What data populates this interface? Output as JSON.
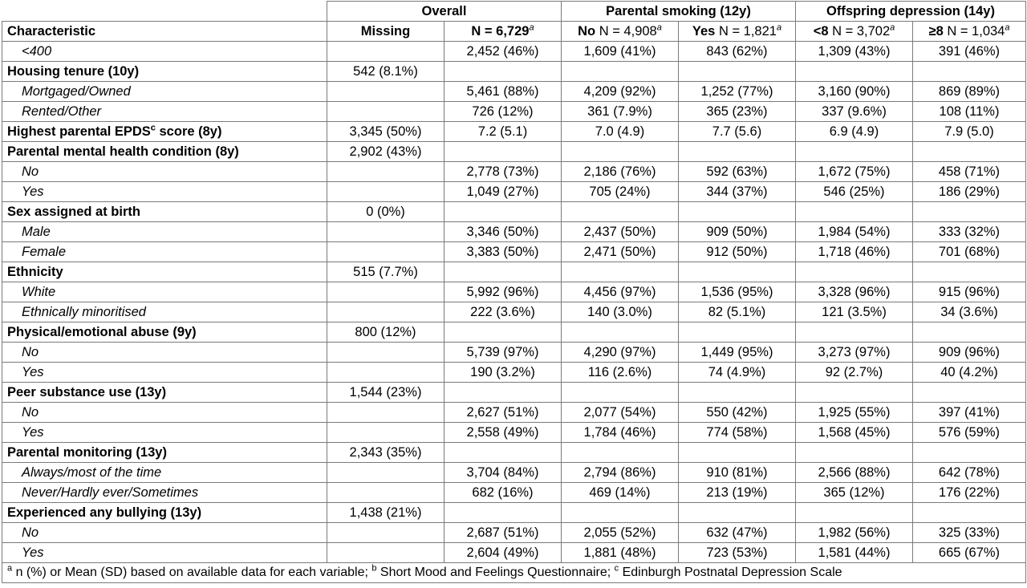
{
  "header": {
    "groups": [
      {
        "label": "Overall",
        "span": 2
      },
      {
        "label": "Parental smoking (12y)",
        "span": 2
      },
      {
        "label": "Offspring depression (14y)",
        "span": 2
      }
    ],
    "cols": [
      {
        "bold": "Characteristic",
        "rest": "",
        "sup": ""
      },
      {
        "bold": "Missing",
        "rest": "",
        "sup": ""
      },
      {
        "bold": "N = 6,729",
        "rest": "",
        "sup": "a"
      },
      {
        "bold": "No",
        "rest": " N = 4,908",
        "sup": "a"
      },
      {
        "bold": "Yes",
        "rest": " N = 1,821",
        "sup": "a"
      },
      {
        "bold": "<8",
        "rest": " N = 3,702",
        "sup": "a"
      },
      {
        "bold": "≥8",
        "rest": " N = 1,034",
        "sup": "a"
      }
    ]
  },
  "rows": [
    {
      "type": "sub",
      "label": "<400",
      "missing": "",
      "overall": "2,452 (46%)",
      "smoke_no": "1,609 (41%)",
      "smoke_yes": "843 (62%)",
      "dep_lt8": "1,309 (43%)",
      "dep_ge8": "391 (46%)"
    },
    {
      "type": "var",
      "label": "Housing tenure (10y)",
      "missing": "542 (8.1%)",
      "overall": "",
      "smoke_no": "",
      "smoke_yes": "",
      "dep_lt8": "",
      "dep_ge8": ""
    },
    {
      "type": "sub",
      "label": "Mortgaged/Owned",
      "missing": "",
      "overall": "5,461 (88%)",
      "smoke_no": "4,209 (92%)",
      "smoke_yes": "1,252 (77%)",
      "dep_lt8": "3,160 (90%)",
      "dep_ge8": "869 (89%)"
    },
    {
      "type": "sub",
      "label": "Rented/Other",
      "missing": "",
      "overall": "726 (12%)",
      "smoke_no": "361 (7.9%)",
      "smoke_yes": "365 (23%)",
      "dep_lt8": "337 (9.6%)",
      "dep_ge8": "108 (11%)"
    },
    {
      "type": "var",
      "label": "Highest parental EPDS",
      "label_sup": "c",
      "label_suffix": " score (8y)",
      "missing": "3,345 (50%)",
      "overall": "7.2 (5.1)",
      "smoke_no": "7.0 (4.9)",
      "smoke_yes": "7.7 (5.6)",
      "dep_lt8": "6.9 (4.9)",
      "dep_ge8": "7.9 (5.0)"
    },
    {
      "type": "var",
      "label": "Parental mental health condition (8y)",
      "missing": "2,902 (43%)",
      "overall": "",
      "smoke_no": "",
      "smoke_yes": "",
      "dep_lt8": "",
      "dep_ge8": ""
    },
    {
      "type": "sub",
      "label": "No",
      "missing": "",
      "overall": "2,778 (73%)",
      "smoke_no": "2,186 (76%)",
      "smoke_yes": "592 (63%)",
      "dep_lt8": "1,672 (75%)",
      "dep_ge8": "458 (71%)"
    },
    {
      "type": "sub",
      "label": "Yes",
      "missing": "",
      "overall": "1,049 (27%)",
      "smoke_no": "705 (24%)",
      "smoke_yes": "344 (37%)",
      "dep_lt8": "546 (25%)",
      "dep_ge8": "186 (29%)"
    },
    {
      "type": "var",
      "label": "Sex assigned at birth",
      "missing": "0 (0%)",
      "overall": "",
      "smoke_no": "",
      "smoke_yes": "",
      "dep_lt8": "",
      "dep_ge8": ""
    },
    {
      "type": "sub",
      "label": "Male",
      "missing": "",
      "overall": "3,346 (50%)",
      "smoke_no": "2,437 (50%)",
      "smoke_yes": "909 (50%)",
      "dep_lt8": "1,984 (54%)",
      "dep_ge8": "333 (32%)"
    },
    {
      "type": "sub",
      "label": "Female",
      "missing": "",
      "overall": "3,383 (50%)",
      "smoke_no": "2,471 (50%)",
      "smoke_yes": "912 (50%)",
      "dep_lt8": "1,718 (46%)",
      "dep_ge8": "701 (68%)"
    },
    {
      "type": "var",
      "label": "Ethnicity",
      "missing": "515 (7.7%)",
      "overall": "",
      "smoke_no": "",
      "smoke_yes": "",
      "dep_lt8": "",
      "dep_ge8": ""
    },
    {
      "type": "sub",
      "label": "White",
      "missing": "",
      "overall": "5,992 (96%)",
      "smoke_no": "4,456 (97%)",
      "smoke_yes": "1,536 (95%)",
      "dep_lt8": "3,328 (96%)",
      "dep_ge8": "915 (96%)"
    },
    {
      "type": "sub",
      "label": "Ethnically minoritised",
      "missing": "",
      "overall": "222 (3.6%)",
      "smoke_no": "140 (3.0%)",
      "smoke_yes": "82 (5.1%)",
      "dep_lt8": "121 (3.5%)",
      "dep_ge8": "34 (3.6%)"
    },
    {
      "type": "var",
      "label": "Physical/emotional abuse (9y)",
      "missing": "800 (12%)",
      "overall": "",
      "smoke_no": "",
      "smoke_yes": "",
      "dep_lt8": "",
      "dep_ge8": ""
    },
    {
      "type": "sub",
      "label": "No",
      "missing": "",
      "overall": "5,739 (97%)",
      "smoke_no": "4,290 (97%)",
      "smoke_yes": "1,449 (95%)",
      "dep_lt8": "3,273 (97%)",
      "dep_ge8": "909 (96%)"
    },
    {
      "type": "sub",
      "label": "Yes",
      "missing": "",
      "overall": "190 (3.2%)",
      "smoke_no": "116 (2.6%)",
      "smoke_yes": "74 (4.9%)",
      "dep_lt8": "92 (2.7%)",
      "dep_ge8": "40 (4.2%)"
    },
    {
      "type": "var",
      "label": "Peer substance use (13y)",
      "missing": "1,544 (23%)",
      "overall": "",
      "smoke_no": "",
      "smoke_yes": "",
      "dep_lt8": "",
      "dep_ge8": ""
    },
    {
      "type": "sub",
      "label": "No",
      "missing": "",
      "overall": "2,627 (51%)",
      "smoke_no": "2,077 (54%)",
      "smoke_yes": "550 (42%)",
      "dep_lt8": "1,925 (55%)",
      "dep_ge8": "397 (41%)"
    },
    {
      "type": "sub",
      "label": "Yes",
      "missing": "",
      "overall": "2,558 (49%)",
      "smoke_no": "1,784 (46%)",
      "smoke_yes": "774 (58%)",
      "dep_lt8": "1,568 (45%)",
      "dep_ge8": "576 (59%)"
    },
    {
      "type": "var",
      "label": "Parental monitoring (13y)",
      "missing": "2,343 (35%)",
      "overall": "",
      "smoke_no": "",
      "smoke_yes": "",
      "dep_lt8": "",
      "dep_ge8": ""
    },
    {
      "type": "sub",
      "label": "Always/most of the time",
      "missing": "",
      "overall": "3,704 (84%)",
      "smoke_no": "2,794 (86%)",
      "smoke_yes": "910 (81%)",
      "dep_lt8": "2,566 (88%)",
      "dep_ge8": "642 (78%)"
    },
    {
      "type": "sub",
      "label": "Never/Hardly ever/Sometimes",
      "missing": "",
      "overall": "682 (16%)",
      "smoke_no": "469 (14%)",
      "smoke_yes": "213 (19%)",
      "dep_lt8": "365 (12%)",
      "dep_ge8": "176 (22%)"
    },
    {
      "type": "var",
      "label": "Experienced any bullying (13y)",
      "missing": "1,438 (21%)",
      "overall": "",
      "smoke_no": "",
      "smoke_yes": "",
      "dep_lt8": "",
      "dep_ge8": ""
    },
    {
      "type": "sub",
      "label": "No",
      "missing": "",
      "overall": "2,687 (51%)",
      "smoke_no": "2,055 (52%)",
      "smoke_yes": "632 (47%)",
      "dep_lt8": "1,982 (56%)",
      "dep_ge8": "325 (33%)"
    },
    {
      "type": "sub",
      "label": "Yes",
      "missing": "",
      "overall": "2,604 (49%)",
      "smoke_no": "1,881 (48%)",
      "smoke_yes": "723 (53%)",
      "dep_lt8": "1,581 (44%)",
      "dep_ge8": "665 (67%)"
    }
  ],
  "footnote": {
    "parts": [
      {
        "sup": "a",
        "text": " n (%) or Mean (SD) based on available data for each variable; "
      },
      {
        "sup": "b",
        "text": " Short Mood and Feelings Questionnaire; "
      },
      {
        "sup": "c",
        "text": " Edinburgh Postnatal Depression Scale"
      }
    ]
  }
}
